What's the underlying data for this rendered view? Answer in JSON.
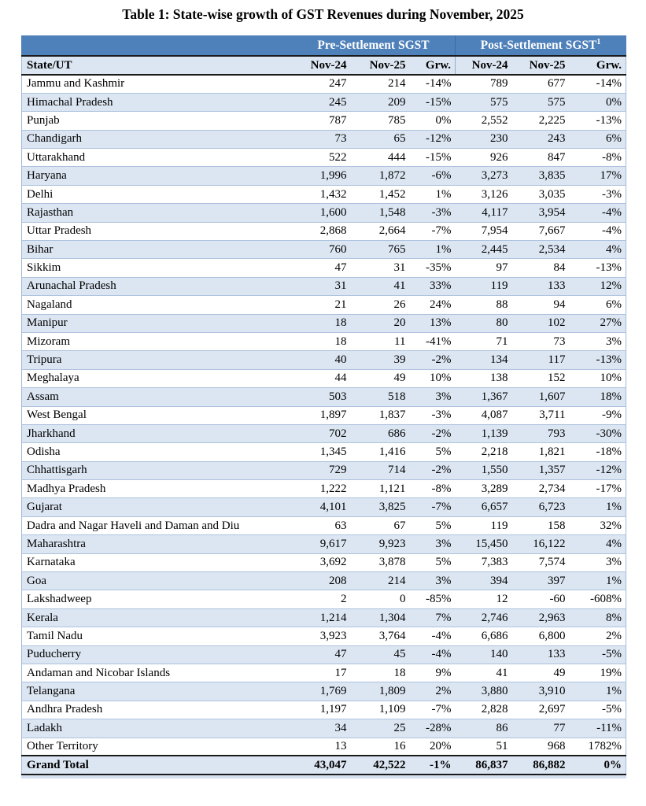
{
  "title": "Table 1: State-wise growth of GST Revenues during November, 2025",
  "colors": {
    "group_header_bg": "#4e80ba",
    "group_header_text": "#ffffff",
    "band_row_bg": "#dce6f2",
    "row_separator": "#adc2dd",
    "dark_rule": "#1b1b1b"
  },
  "table": {
    "group_headers": {
      "state_spacer": "",
      "pre": "Pre-Settlement SGST",
      "post": "Post-Settlement SGST",
      "post_sup": "1"
    },
    "columns": [
      "State/UT",
      "Nov-24",
      "Nov-25",
      "Grw.",
      "Nov-24",
      "Nov-25",
      "Grw."
    ],
    "rows": [
      [
        "Jammu and Kashmir",
        "247",
        "214",
        "-14%",
        "789",
        "677",
        "-14%"
      ],
      [
        "Himachal Pradesh",
        "245",
        "209",
        "-15%",
        "575",
        "575",
        "0%"
      ],
      [
        "Punjab",
        "787",
        "785",
        "0%",
        "2,552",
        "2,225",
        "-13%"
      ],
      [
        "Chandigarh",
        "73",
        "65",
        "-12%",
        "230",
        "243",
        "6%"
      ],
      [
        "Uttarakhand",
        "522",
        "444",
        "-15%",
        "926",
        "847",
        "-8%"
      ],
      [
        "Haryana",
        "1,996",
        "1,872",
        "-6%",
        "3,273",
        "3,835",
        "17%"
      ],
      [
        "Delhi",
        "1,432",
        "1,452",
        "1%",
        "3,126",
        "3,035",
        "-3%"
      ],
      [
        "Rajasthan",
        "1,600",
        "1,548",
        "-3%",
        "4,117",
        "3,954",
        "-4%"
      ],
      [
        "Uttar Pradesh",
        "2,868",
        "2,664",
        "-7%",
        "7,954",
        "7,667",
        "-4%"
      ],
      [
        "Bihar",
        "760",
        "765",
        "1%",
        "2,445",
        "2,534",
        "4%"
      ],
      [
        "Sikkim",
        "47",
        "31",
        "-35%",
        "97",
        "84",
        "-13%"
      ],
      [
        "Arunachal Pradesh",
        "31",
        "41",
        "33%",
        "119",
        "133",
        "12%"
      ],
      [
        "Nagaland",
        "21",
        "26",
        "24%",
        "88",
        "94",
        "6%"
      ],
      [
        "Manipur",
        "18",
        "20",
        "13%",
        "80",
        "102",
        "27%"
      ],
      [
        "Mizoram",
        "18",
        "11",
        "-41%",
        "71",
        "73",
        "3%"
      ],
      [
        "Tripura",
        "40",
        "39",
        "-2%",
        "134",
        "117",
        "-13%"
      ],
      [
        "Meghalaya",
        "44",
        "49",
        "10%",
        "138",
        "152",
        "10%"
      ],
      [
        "Assam",
        "503",
        "518",
        "3%",
        "1,367",
        "1,607",
        "18%"
      ],
      [
        "West Bengal",
        "1,897",
        "1,837",
        "-3%",
        "4,087",
        "3,711",
        "-9%"
      ],
      [
        "Jharkhand",
        "702",
        "686",
        "-2%",
        "1,139",
        "793",
        "-30%"
      ],
      [
        "Odisha",
        "1,345",
        "1,416",
        "5%",
        "2,218",
        "1,821",
        "-18%"
      ],
      [
        "Chhattisgarh",
        "729",
        "714",
        "-2%",
        "1,550",
        "1,357",
        "-12%"
      ],
      [
        "Madhya Pradesh",
        "1,222",
        "1,121",
        "-8%",
        "3,289",
        "2,734",
        "-17%"
      ],
      [
        "Gujarat",
        "4,101",
        "3,825",
        "-7%",
        "6,657",
        "6,723",
        "1%"
      ],
      [
        "Dadra and Nagar Haveli and Daman and Diu",
        "63",
        "67",
        "5%",
        "119",
        "158",
        "32%"
      ],
      [
        "Maharashtra",
        "9,617",
        "9,923",
        "3%",
        "15,450",
        "16,122",
        "4%"
      ],
      [
        "Karnataka",
        "3,692",
        "3,878",
        "5%",
        "7,383",
        "7,574",
        "3%"
      ],
      [
        "Goa",
        "208",
        "214",
        "3%",
        "394",
        "397",
        "1%"
      ],
      [
        "Lakshadweep",
        "2",
        "0",
        "-85%",
        "12",
        "-60",
        "-608%"
      ],
      [
        "Kerala",
        "1,214",
        "1,304",
        "7%",
        "2,746",
        "2,963",
        "8%"
      ],
      [
        "Tamil Nadu",
        "3,923",
        "3,764",
        "-4%",
        "6,686",
        "6,800",
        "2%"
      ],
      [
        "Puducherry",
        "47",
        "45",
        "-4%",
        "140",
        "133",
        "-5%"
      ],
      [
        "Andaman and Nicobar Islands",
        "17",
        "18",
        "9%",
        "41",
        "49",
        "19%"
      ],
      [
        "Telangana",
        "1,769",
        "1,809",
        "2%",
        "3,880",
        "3,910",
        "1%"
      ],
      [
        "Andhra Pradesh",
        "1,197",
        "1,109",
        "-7%",
        "2,828",
        "2,697",
        "-5%"
      ],
      [
        "Ladakh",
        "34",
        "25",
        "-28%",
        "86",
        "77",
        "-11%"
      ],
      [
        "Other Territory",
        "13",
        "16",
        "20%",
        "51",
        "968",
        "1782%"
      ]
    ],
    "grand_total": [
      "Grand Total",
      "43,047",
      "42,522",
      "-1%",
      "86,837",
      "86,882",
      "0%"
    ]
  }
}
